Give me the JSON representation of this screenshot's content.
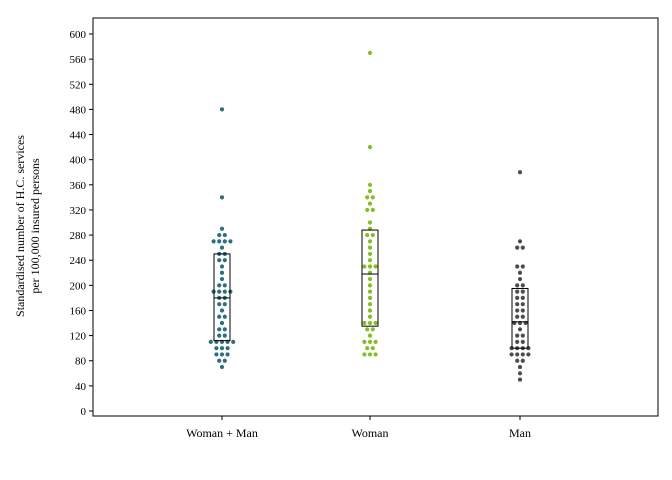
{
  "chart_data": {
    "type": "scatter",
    "subtype": "dot plot with box",
    "title": "",
    "xlabel": "",
    "ylabel": [
      "Standardised number of H.C. services",
      "per 100,000 insured persons"
    ],
    "ylim": [
      0,
      620
    ],
    "yticks": [
      0,
      40,
      80,
      120,
      160,
      200,
      240,
      280,
      320,
      360,
      400,
      440,
      480,
      520,
      560,
      600
    ],
    "grid": false,
    "legend": "none",
    "categories": [
      "Woman + Man",
      "Woman",
      "Man"
    ],
    "series": [
      {
        "category": "Woman + Man",
        "color": "#2e6f7e",
        "box": {
          "q1": 112,
          "median": 180,
          "q3": 250
        },
        "values": [
          480,
          340,
          290,
          280,
          280,
          270,
          270,
          270,
          270,
          260,
          250,
          250,
          240,
          240,
          230,
          220,
          210,
          200,
          200,
          190,
          190,
          190,
          190,
          180,
          180,
          170,
          170,
          160,
          150,
          150,
          140,
          130,
          130,
          120,
          120,
          110,
          110,
          110,
          110,
          110,
          100,
          100,
          100,
          90,
          90,
          90,
          80,
          80,
          70
        ]
      },
      {
        "category": "Woman",
        "color": "#84bd25",
        "box": {
          "q1": 135,
          "median": 218,
          "q3": 288
        },
        "values": [
          570,
          420,
          360,
          350,
          340,
          340,
          330,
          320,
          320,
          300,
          290,
          280,
          280,
          270,
          260,
          250,
          240,
          230,
          230,
          230,
          220,
          210,
          200,
          190,
          180,
          170,
          160,
          150,
          140,
          140,
          140,
          130,
          130,
          120,
          110,
          110,
          110,
          100,
          100,
          90,
          90,
          90
        ]
      },
      {
        "category": "Man",
        "color": "#4d4d4f",
        "box": {
          "q1": 100,
          "median": 142,
          "q3": 195
        },
        "values": [
          380,
          270,
          260,
          260,
          230,
          230,
          220,
          210,
          200,
          200,
          190,
          190,
          180,
          180,
          170,
          170,
          160,
          160,
          150,
          150,
          140,
          140,
          140,
          130,
          120,
          120,
          110,
          110,
          100,
          100,
          100,
          100,
          90,
          90,
          90,
          90,
          80,
          80,
          70,
          60,
          50
        ]
      }
    ]
  }
}
